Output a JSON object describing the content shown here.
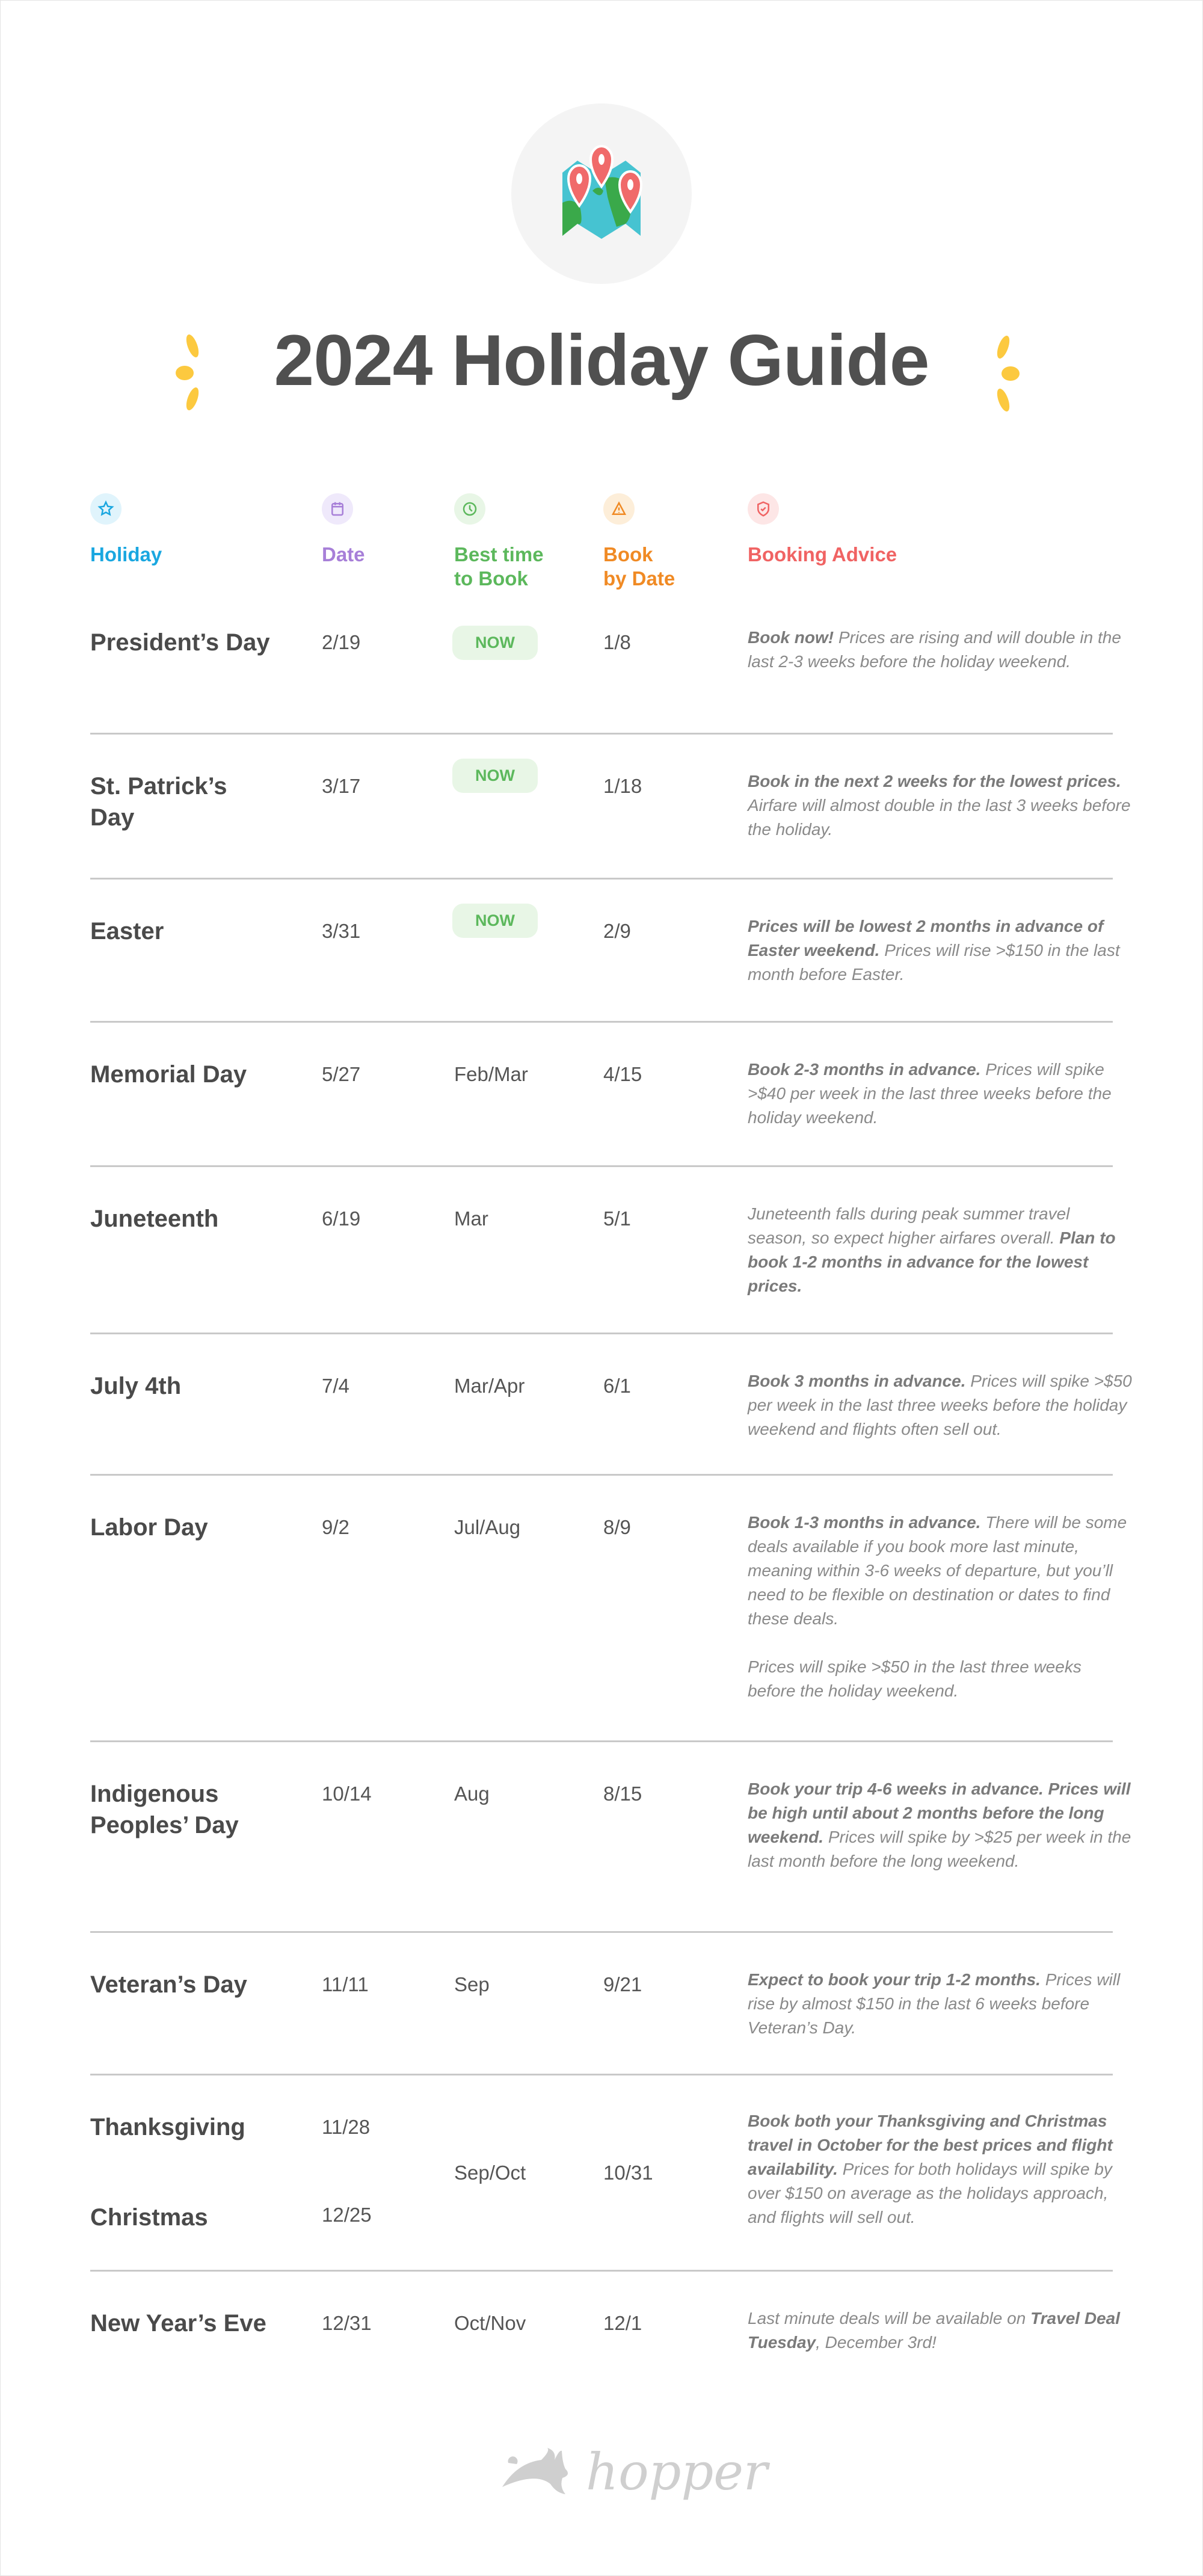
{
  "title": "2024 Holiday Guide",
  "colors": {
    "holiday": "#1aa7e0",
    "date": "#a77fd8",
    "best": "#5cb85c",
    "bookby": "#f08a24",
    "advice": "#f06363",
    "accent_yellow": "#fcc93f"
  },
  "headers": [
    {
      "label": "Holiday",
      "icon": "star-icon"
    },
    {
      "label": "Date",
      "icon": "calendar-icon"
    },
    {
      "label": "Best time\nto Book",
      "icon": "clock-icon"
    },
    {
      "label": "Book\nby Date",
      "icon": "warning-icon"
    },
    {
      "label": "Booking Advice",
      "icon": "shield-check-icon"
    }
  ],
  "rows": [
    {
      "holiday": "President’s Day",
      "date": "2/19",
      "best": "NOW",
      "best_badge": true,
      "book_by": "1/8",
      "advice": [
        {
          "t": "Book now!",
          "b": true
        },
        {
          "t": " Prices are rising and will double in the last 2-3 weeks before the holiday weekend."
        }
      ]
    },
    {
      "holiday": "St. Patrick’s Day",
      "date": "3/17",
      "best": "NOW",
      "best_badge": true,
      "book_by": "1/18",
      "advice": [
        {
          "t": "Book in the next 2 weeks for the lowest prices.",
          "b": true
        },
        {
          "t": " Airfare will almost double in the last 3 weeks before the holiday."
        }
      ]
    },
    {
      "holiday": "Easter",
      "date": "3/31",
      "best": "NOW",
      "best_badge": true,
      "book_by": "2/9",
      "advice": [
        {
          "t": "Prices will be lowest 2 months in advance of Easter weekend.",
          "b": true
        },
        {
          "t": " Prices will rise >$150 in the last month before Easter."
        }
      ]
    },
    {
      "holiday": "Memorial Day",
      "date": "5/27",
      "best": "Feb/Mar",
      "book_by": "4/15",
      "advice": [
        {
          "t": "Book 2-3 months in advance.",
          "b": true
        },
        {
          "t": " Prices will spike >$40 per week in the last three weeks before the holiday weekend."
        }
      ]
    },
    {
      "holiday": "Juneteenth",
      "date": "6/19",
      "best": "Mar",
      "book_by": "5/1",
      "advice": [
        {
          "t": "Juneteenth falls during peak summer travel season, so expect higher airfares overall. "
        },
        {
          "t": "Plan to book 1-2 months in advance for the lowest prices.",
          "b": true
        }
      ]
    },
    {
      "holiday": "July 4th",
      "date": "7/4",
      "best": "Mar/Apr",
      "book_by": "6/1",
      "advice": [
        {
          "t": "Book 3 months in advance.",
          "b": true
        },
        {
          "t": " Prices will spike >$50 per week in the last three weeks before the holiday weekend and flights often sell out."
        }
      ]
    },
    {
      "holiday": "Labor Day",
      "date": "9/2",
      "best": "Jul/Aug",
      "book_by": "8/9",
      "advice": [
        {
          "t": "Book 1-3 months in advance.",
          "b": true
        },
        {
          "t": " There will be some deals available if you book more last minute, meaning within 3-6 weeks of departure, but you’ll need to be flexible on destination or dates to find these deals.\n\nPrices will spike >$50 in the last three weeks before the holiday weekend."
        }
      ]
    },
    {
      "holiday": "Indigenous Peoples’ Day",
      "date": "10/14",
      "best": "Aug",
      "book_by": "8/15",
      "advice": [
        {
          "t": "Book your trip 4-6 weeks in advance. Prices will be high until about 2 months before the long weekend.",
          "b": true
        },
        {
          "t": " Prices will spike by >$25 per week in the last month before the long weekend."
        }
      ]
    },
    {
      "holiday": "Veteran’s Day",
      "date": "11/11",
      "best": "Sep",
      "book_by": "9/21",
      "advice": [
        {
          "t": "Expect to book your trip 1-2 months.",
          "b": true
        },
        {
          "t": " Prices will rise by almost $150 in the last 6 weeks before Veteran’s Day."
        }
      ]
    },
    {
      "holiday": "Thanksgiving",
      "date": "11/28",
      "holiday2": "Christmas",
      "date2": "12/25",
      "best": "Sep/Oct",
      "book_by": "10/31",
      "advice": [
        {
          "t": "Book both your Thanksgiving and Christmas travel in October for the best prices and flight availability.",
          "b": true
        },
        {
          "t": " Prices for both holidays will spike by over $150 on average as the holidays approach, and flights will sell out."
        }
      ]
    },
    {
      "holiday": "New Year’s Eve",
      "date": "12/31",
      "best": "Oct/Nov",
      "book_by": "12/1",
      "advice": [
        {
          "t": "Last minute deals will be available on "
        },
        {
          "t": "Travel Deal Tuesday",
          "b": true
        },
        {
          "t": ", December 3rd!"
        }
      ]
    }
  ],
  "footer": {
    "logo_text": "hopper"
  }
}
